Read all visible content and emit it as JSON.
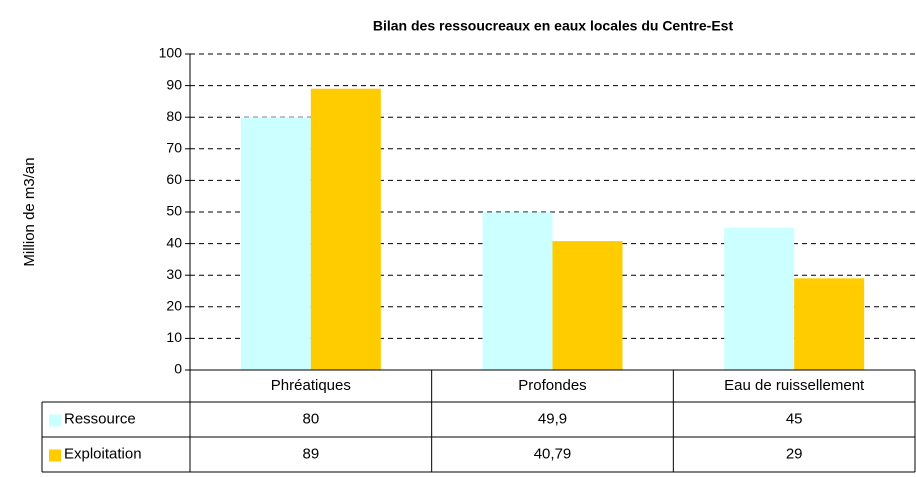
{
  "chart_data": {
    "type": "bar",
    "title": "Bilan des ressoucreaux en eaux locales du Centre-Est",
    "y_label": "Million de m3/an",
    "categories": [
      "Phréatiques",
      "Profondes",
      "Eau de ruissellement"
    ],
    "series": [
      {
        "name": "Ressource",
        "color": "#ccffff",
        "values": [
          80,
          49.9,
          45
        ],
        "value_labels": [
          "80",
          "49,9",
          "45"
        ]
      },
      {
        "name": "Exploitation",
        "color": "#ffcc00",
        "values": [
          89,
          40.79,
          29
        ],
        "value_labels": [
          "89",
          "40,79",
          "29"
        ]
      }
    ],
    "ylim": [
      0,
      100
    ],
    "yticks": [
      0,
      10,
      20,
      30,
      40,
      50,
      60,
      70,
      80,
      90,
      100
    ],
    "grid": true
  }
}
